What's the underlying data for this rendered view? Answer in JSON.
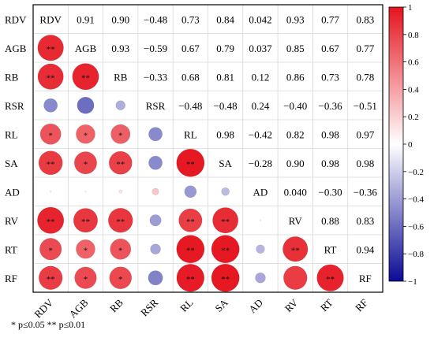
{
  "chart_data": {
    "type": "heatmap",
    "variables": [
      "RDV",
      "AGB",
      "RB",
      "RSR",
      "RL",
      "SA",
      "AD",
      "RV",
      "RT",
      "RF"
    ],
    "upper_triangle": "correlation coefficient text",
    "lower_triangle": "circles sized and colored by coefficient",
    "matrix": [
      [
        1,
        0.91,
        0.9,
        -0.48,
        0.73,
        0.84,
        0.042,
        0.93,
        0.77,
        0.83
      ],
      [
        0.91,
        1,
        0.93,
        -0.59,
        0.67,
        0.79,
        0.037,
        0.85,
        0.67,
        0.77
      ],
      [
        0.9,
        0.93,
        1,
        -0.33,
        0.68,
        0.81,
        0.12,
        0.86,
        0.73,
        0.78
      ],
      [
        -0.48,
        -0.59,
        -0.33,
        1,
        -0.48,
        -0.48,
        0.24,
        -0.4,
        -0.36,
        -0.51
      ],
      [
        0.73,
        0.67,
        0.68,
        -0.48,
        1,
        0.98,
        -0.42,
        0.82,
        0.98,
        0.97
      ],
      [
        0.84,
        0.79,
        0.81,
        -0.48,
        0.98,
        1,
        -0.28,
        0.9,
        0.98,
        0.98
      ],
      [
        0.042,
        0.037,
        0.12,
        0.24,
        -0.42,
        -0.28,
        1,
        0.04,
        -0.3,
        -0.36
      ],
      [
        0.93,
        0.85,
        0.86,
        -0.4,
        0.82,
        0.9,
        0.04,
        1,
        0.88,
        0.83
      ],
      [
        0.77,
        0.67,
        0.73,
        -0.36,
        0.98,
        0.98,
        -0.3,
        0.88,
        1,
        0.94
      ],
      [
        0.83,
        0.77,
        0.78,
        -0.51,
        0.97,
        0.98,
        -0.36,
        0.83,
        0.94,
        1
      ]
    ],
    "labels_upper": [
      [
        "",
        "0.91",
        "0.90",
        "−0.48",
        "0.73",
        "0.84",
        "0.042",
        "0.93",
        "0.77",
        "0.83"
      ],
      [
        "",
        "",
        "0.93",
        "−0.59",
        "0.67",
        "0.79",
        "0.037",
        "0.85",
        "0.67",
        "0.77"
      ],
      [
        "",
        "",
        "",
        "−0.33",
        "0.68",
        "0.81",
        "0.12",
        "0.86",
        "0.73",
        "0.78"
      ],
      [
        "",
        "",
        "",
        "",
        "−0.48",
        "−0.48",
        "0.24",
        "−0.40",
        "−0.36",
        "−0.51"
      ],
      [
        "",
        "",
        "",
        "",
        "",
        "0.98",
        "−0.42",
        "0.82",
        "0.98",
        "0.97"
      ],
      [
        "",
        "",
        "",
        "",
        "",
        "",
        "−0.28",
        "0.90",
        "0.98",
        "0.98"
      ],
      [
        "",
        "",
        "",
        "",
        "",
        "",
        "",
        "0.040",
        "−0.30",
        "−0.36"
      ],
      [
        "",
        "",
        "",
        "",
        "",
        "",
        "",
        "",
        "0.88",
        "0.83"
      ],
      [
        "",
        "",
        "",
        "",
        "",
        "",
        "",
        "",
        "",
        "0.94"
      ],
      [
        "",
        "",
        "",
        "",
        "",
        "",
        "",
        "",
        "",
        ""
      ]
    ],
    "significance_lower": [
      [
        "",
        "",
        "",
        "",
        "",
        "",
        "",
        "",
        "",
        ""
      ],
      [
        "**",
        "",
        "",
        "",
        "",
        "",
        "",
        "",
        "",
        ""
      ],
      [
        "**",
        "**",
        "",
        "",
        "",
        "",
        "",
        "",
        "",
        ""
      ],
      [
        "",
        "",
        "",
        "",
        "",
        "",
        "",
        "",
        "",
        ""
      ],
      [
        "*",
        "*",
        "*",
        "",
        "",
        "",
        "",
        "",
        "",
        ""
      ],
      [
        "**",
        "*",
        "**",
        "",
        "**",
        "",
        "",
        "",
        "",
        ""
      ],
      [
        "",
        "",
        "",
        "",
        "",
        "",
        "",
        "",
        "",
        ""
      ],
      [
        "**",
        "**",
        "**",
        "",
        "**",
        "**",
        "",
        "",
        "",
        ""
      ],
      [
        "*",
        "*",
        "*",
        "",
        "**",
        "**",
        "",
        "**",
        "",
        ""
      ],
      [
        "**",
        "*",
        "*",
        "",
        "**",
        "**",
        "",
        "",
        "**",
        ""
      ]
    ],
    "colorbar": {
      "range": [
        -1,
        1
      ],
      "ticks": [
        "−1",
        "−0.8",
        "−0.6",
        "−0.4",
        "−0.2",
        "0",
        "0.2",
        "0.4",
        "0.6",
        "0.8",
        "1"
      ],
      "colors": {
        "negative": "#0a0a96",
        "zero": "#ffffff",
        "positive": "#e5141e"
      }
    },
    "footnote": "* p≤0.05  ** p≤0.01"
  }
}
